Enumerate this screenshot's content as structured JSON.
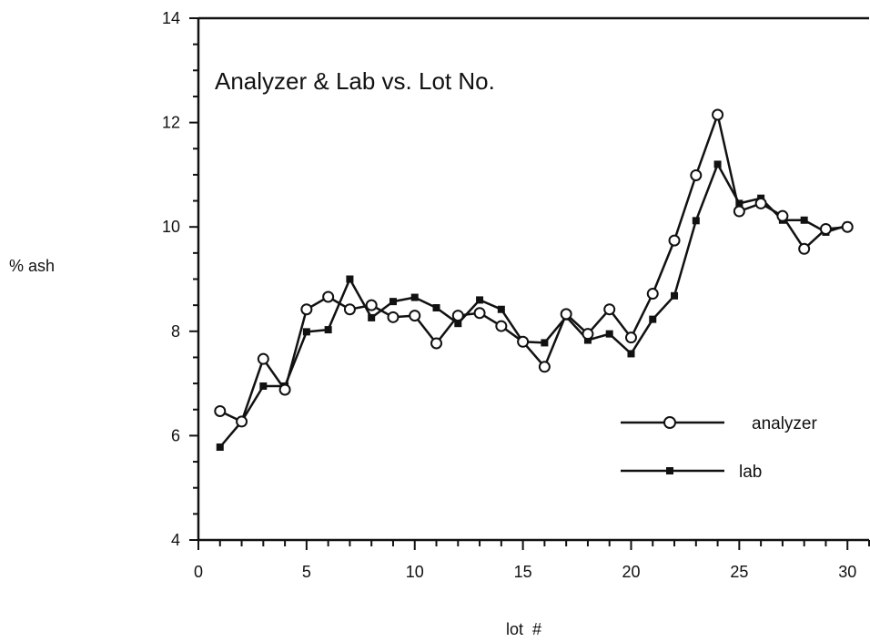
{
  "chart_data": {
    "type": "line",
    "title": "Analyzer & Lab vs. Lot No.",
    "xlabel": "lot  #",
    "ylabel": "% ash",
    "xlim": [
      0,
      31
    ],
    "ylim": [
      4,
      14
    ],
    "x_ticks": [
      "0",
      "5",
      "10",
      "15",
      "20",
      "25",
      "30"
    ],
    "y_ticks": [
      "4",
      "6",
      "8",
      "10",
      "12",
      "14"
    ],
    "grid": false,
    "legend_position": "lower-right",
    "x": [
      1,
      2,
      3,
      4,
      5,
      6,
      7,
      8,
      9,
      10,
      11,
      12,
      13,
      14,
      15,
      16,
      17,
      18,
      19,
      20,
      21,
      22,
      23,
      24,
      25,
      26,
      27,
      28,
      29,
      30
    ],
    "series": [
      {
        "name": "analyzer",
        "marker": "open-circle",
        "color": "#111111",
        "values": [
          6.47,
          6.27,
          7.47,
          6.88,
          8.42,
          8.66,
          8.42,
          8.5,
          8.27,
          8.3,
          7.77,
          8.3,
          8.35,
          8.1,
          7.8,
          7.32,
          8.33,
          7.95,
          8.42,
          7.88,
          8.72,
          9.74,
          10.99,
          12.15,
          10.3,
          10.45,
          10.21,
          9.58,
          9.96,
          10.0
        ]
      },
      {
        "name": "lab",
        "marker": "filled-square",
        "color": "#111111",
        "values": [
          5.78,
          6.27,
          6.95,
          6.95,
          7.99,
          8.03,
          9.0,
          8.26,
          8.57,
          8.65,
          8.45,
          8.15,
          8.6,
          8.42,
          7.8,
          7.78,
          8.28,
          7.83,
          7.95,
          7.57,
          8.23,
          8.68,
          10.12,
          11.2,
          10.45,
          10.55,
          10.13,
          10.13,
          9.9,
          10.03
        ]
      }
    ]
  }
}
